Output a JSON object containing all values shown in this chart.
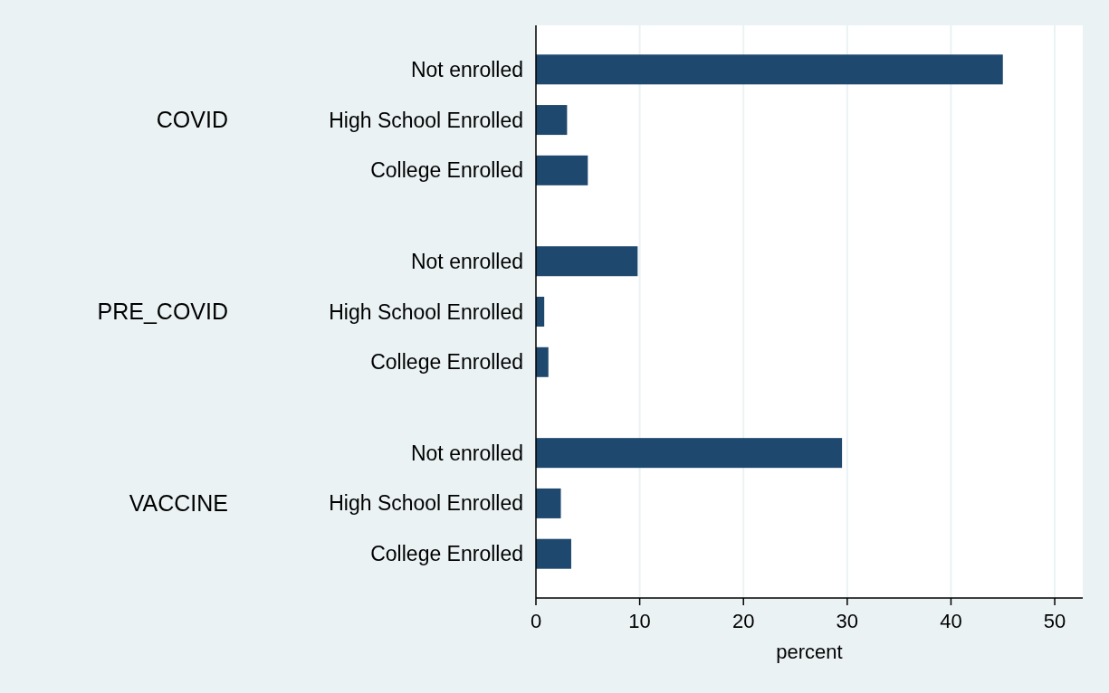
{
  "chart_data": {
    "type": "bar",
    "orientation": "horizontal",
    "xlabel": "percent",
    "categories": [
      "Not enrolled",
      "High School Enrolled",
      "College Enrolled",
      "Not enrolled",
      "High School Enrolled",
      "College Enrolled",
      "Not enrolled",
      "High School Enrolled",
      "College Enrolled"
    ],
    "values": [
      45.0,
      3.0,
      5.0,
      9.8,
      0.8,
      1.2,
      29.5,
      2.4,
      3.4
    ],
    "color": "#1f486e",
    "annotations": [
      "COVID",
      "PRE_COVID",
      "VACCINE"
    ],
    "xlim": [
      0,
      52.7
    ],
    "xticks": [
      0,
      10,
      20,
      30,
      40,
      50
    ],
    "grid": "x"
  }
}
